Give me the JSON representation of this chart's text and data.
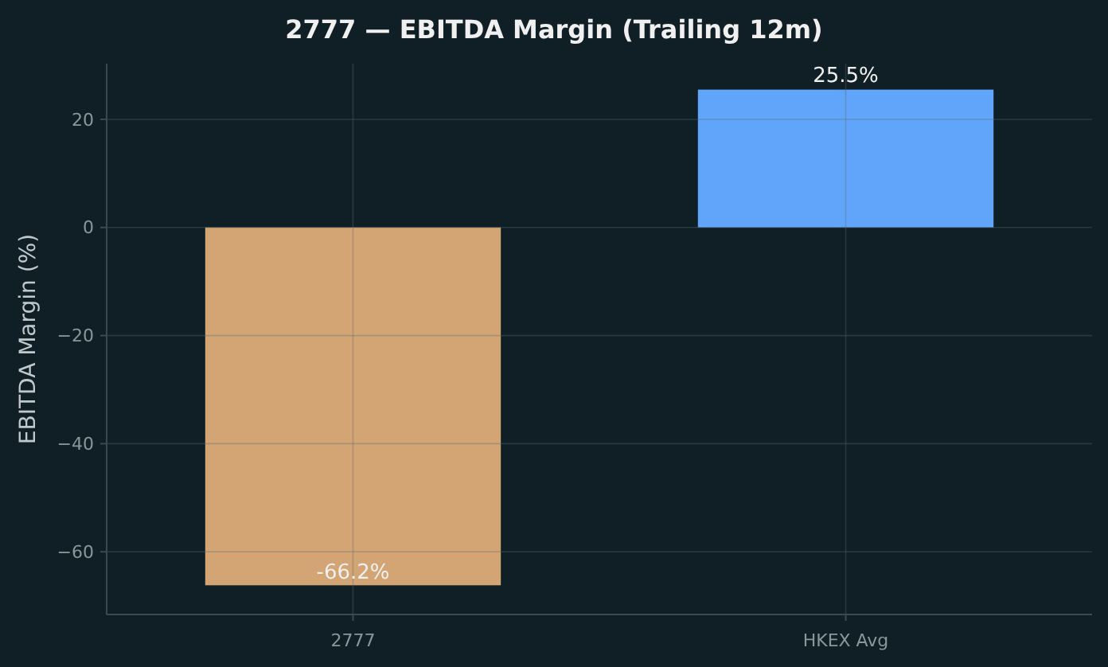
{
  "chart_data": {
    "type": "bar",
    "title": "2777 — EBITDA Margin (Trailing 12m)",
    "ylabel": "EBITDA Margin (%)",
    "categories": [
      "2777",
      "HKEX Avg"
    ],
    "values": [
      -66.2,
      25.5
    ],
    "colors": [
      "#d4a574",
      "#60a5fa"
    ],
    "value_labels": [
      "-66.2%",
      "25.5%"
    ],
    "ylim": [
      -71.6,
      30.3
    ],
    "yticks": [
      {
        "value": -60,
        "label": "−60"
      },
      {
        "value": -40,
        "label": "−40"
      },
      {
        "value": -20,
        "label": "−20"
      },
      0,
      20
    ],
    "grid": true
  }
}
